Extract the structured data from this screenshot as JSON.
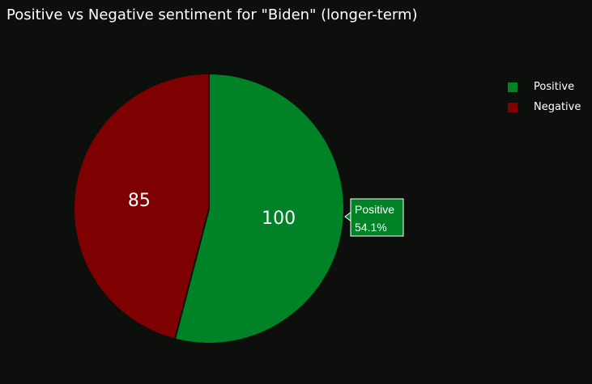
{
  "chart_data": {
    "type": "pie",
    "title": "Positive vs Negative sentiment for \"Biden\" (longer-term)",
    "labels": [
      "Positive",
      "Negative"
    ],
    "values": [
      100,
      85
    ],
    "colors": [
      "#008226",
      "#7f0000"
    ],
    "legend_placement": "top-right",
    "hover": {
      "label": "Positive",
      "percent": "54.1%"
    }
  }
}
